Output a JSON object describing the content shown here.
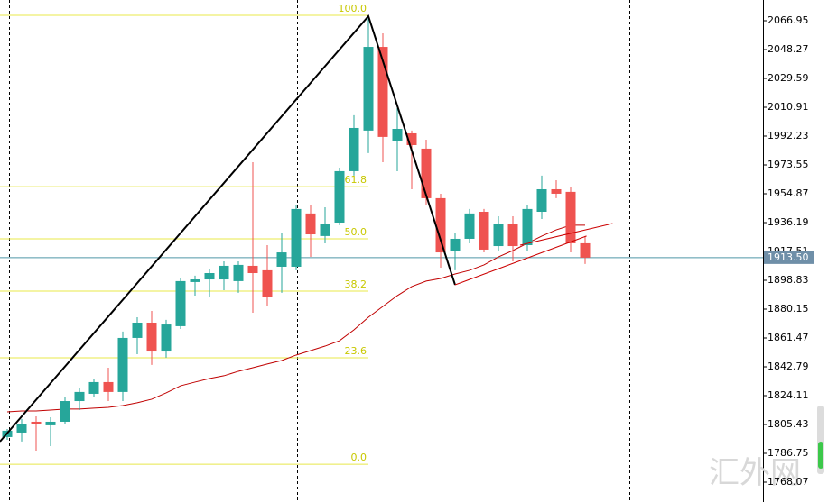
{
  "chart_data": {
    "type": "candlestick",
    "ylim": [
      1755.23,
      2080.38
    ],
    "yticks": [
      2066.95,
      2048.27,
      2029.59,
      2010.91,
      1992.23,
      1973.55,
      1954.87,
      1936.19,
      1917.51,
      1898.83,
      1880.15,
      1861.47,
      1842.79,
      1824.11,
      1805.43,
      1786.75,
      1768.07
    ],
    "up_color": "#26a69a",
    "down_color": "#ef5350",
    "open": [
      1797.3,
      1800.2,
      1807.2,
      1804.9,
      1807.2,
      1820.6,
      1825.3,
      1832.9,
      1826.5,
      1861.5,
      1871.4,
      1852.7,
      1869.1,
      1897.7,
      1899.4,
      1899.4,
      1898.3,
      1908.2,
      1905.3,
      1907.6,
      1907.6,
      1942.1,
      1927.5,
      1936.2,
      1969.5,
      1995.8,
      2050.0,
      1989.3,
      1994.0,
      1984.1,
      1952.0,
      1918.1,
      1925.7,
      1943.2,
      1921.0,
      1935.6,
      1921.6,
      1943.2,
      1957.8,
      1956.1,
      1922.8
    ],
    "high": [
      1802.5,
      1809.0,
      1810.7,
      1810.1,
      1823.5,
      1829.4,
      1835.2,
      1842.2,
      1865.6,
      1874.9,
      1879.0,
      1873.2,
      1900.6,
      1901.8,
      1906.4,
      1911.1,
      1911.1,
      1975.3,
      1921.6,
      1929.8,
      1947.3,
      1947.3,
      1946.1,
      1971.8,
      2005.7,
      2069.9,
      2058.8,
      2010.3,
      1995.8,
      1989.9,
      1954.9,
      1929.8,
      1945.0,
      1945.0,
      1940.3,
      1940.3,
      1947.3,
      1966.6,
      1963.6,
      1959.0,
      1927.5
    ],
    "low": [
      1795.5,
      1794.4,
      1788.5,
      1791.4,
      1806.0,
      1814.8,
      1823.5,
      1820.6,
      1820.6,
      1851.0,
      1844.0,
      1848.7,
      1867.3,
      1888.9,
      1887.8,
      1892.4,
      1890.7,
      1877.8,
      1881.9,
      1890.7,
      1905.3,
      1914.0,
      1922.8,
      1934.5,
      1966.6,
      1981.2,
      1975.3,
      1969.5,
      1957.8,
      1947.3,
      1907.0,
      1905.3,
      1922.8,
      1916.9,
      1918.1,
      1911.1,
      1918.1,
      1938.5,
      1952.0,
      1916.9,
      1909.4
    ],
    "close": [
      1801.4,
      1806.0,
      1805.5,
      1807.2,
      1820.6,
      1826.5,
      1832.9,
      1826.5,
      1861.5,
      1871.4,
      1852.7,
      1870.2,
      1898.3,
      1899.4,
      1903.5,
      1908.2,
      1908.8,
      1903.5,
      1887.8,
      1916.9,
      1945.0,
      1928.6,
      1935.6,
      1969.5,
      1997.5,
      2050.0,
      1991.7,
      1996.9,
      1986.4,
      1952.0,
      1916.9,
      1925.7,
      1942.1,
      1918.7,
      1935.6,
      1921.0,
      1945.0,
      1957.8,
      1954.9,
      1922.8,
      1913.5
    ],
    "ma": {
      "color": "#c00000",
      "values": [
        1813.6,
        1814.2,
        1814.2,
        1814.8,
        1815.4,
        1815.4,
        1816.0,
        1816.5,
        1817.7,
        1819.5,
        1821.8,
        1825.9,
        1830.5,
        1832.9,
        1835.2,
        1837.0,
        1839.9,
        1842.2,
        1844.6,
        1846.9,
        1850.4,
        1853.3,
        1856.2,
        1859.7,
        1866.7,
        1874.9,
        1881.9,
        1888.9,
        1894.8,
        1898.3,
        1900.0,
        1902.9,
        1905.3,
        1908.8,
        1914.0,
        1918.1,
        1922.8,
        1927.5,
        1931.5,
        1934.5,
        1934.5
      ]
    },
    "fib_color": "#e8e84a",
    "fib_levels": [
      {
        "label": "100.0",
        "value": 2070.45
      },
      {
        "label": "61.8",
        "value": 1959.5
      },
      {
        "label": "50.0",
        "value": 1925.7
      },
      {
        "label": "38.2",
        "value": 1891.8
      },
      {
        "label": "23.6",
        "value": 1848.6
      },
      {
        "label": "0.0",
        "value": 1779.7
      }
    ],
    "trendlines": [
      {
        "color": "#000000",
        "x": [
          -0.5,
          25,
          31
        ],
        "y": [
          1794.4,
          2069.9,
          1895.9
        ]
      },
      {
        "color": "#cc0000",
        "x": [
          31,
          40.1
        ],
        "y": [
          1895.9,
          1927.5
        ]
      },
      {
        "color": "#cc0000",
        "x": [
          35.5,
          41.9
        ],
        "y": [
          1921.6,
          1935.6
        ]
      }
    ],
    "current_price": {
      "value": 1913.5,
      "label": "1913.50",
      "color": "#4f98a8"
    },
    "watermark": "汇外网"
  }
}
